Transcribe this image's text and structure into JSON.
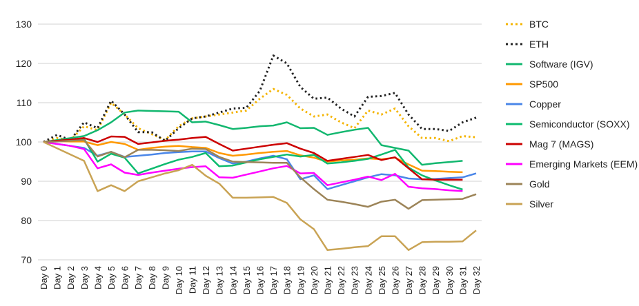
{
  "chart_data": {
    "type": "line",
    "title": "",
    "xlabel": "",
    "ylabel": "",
    "ylim": [
      70,
      130
    ],
    "yticks": [
      70,
      80,
      90,
      100,
      110,
      120,
      130
    ],
    "grid": true,
    "legend": "right",
    "categories": [
      "Day 0",
      "Day 1",
      "Day 2",
      "Day 3",
      "Day 4",
      "Day 5",
      "Day 6",
      "Day 7",
      "Day 8",
      "Day 9",
      "Day 10",
      "Day 11",
      "Day 12",
      "Day 13",
      "Day 14",
      "Day 15",
      "Day 16",
      "Day 17",
      "Day 18",
      "Day 19",
      "Day 20",
      "Day 21",
      "Day 22",
      "Day 23",
      "Day 24",
      "Day 25",
      "Day 26",
      "Day 27",
      "Day 28",
      "Day 29",
      "Day 30",
      "Day 31",
      "Day 32"
    ],
    "series": [
      {
        "name": "BTC",
        "color": "#f4b400",
        "dashed": true,
        "values": [
          100,
          101,
          100.5,
          104,
          103,
          110,
          107,
          103.5,
          102,
          100.5,
          104,
          106,
          106.5,
          107,
          107.5,
          108,
          111,
          113.5,
          112,
          108.5,
          106.5,
          107,
          105,
          103.5,
          108,
          107,
          108.5,
          104,
          101,
          101,
          100.2,
          101.5,
          101.2
        ]
      },
      {
        "name": "ETH",
        "color": "#222222",
        "dashed": true,
        "values": [
          100,
          101.8,
          100.5,
          105,
          103.5,
          110.5,
          107,
          102.5,
          102.5,
          100.3,
          103.5,
          106,
          106.5,
          107.5,
          108.5,
          108.7,
          113,
          122,
          120,
          114,
          111,
          111.3,
          108.5,
          106.5,
          111.5,
          111.7,
          112.5,
          107,
          103.3,
          103.3,
          102.8,
          105,
          106.2
        ]
      },
      {
        "name": "Software (IGV)",
        "color": "#12b76f",
        "dashed": false,
        "values": [
          100,
          100.5,
          101,
          101.5,
          103,
          105,
          107.5,
          108,
          107.9,
          107.8,
          107.7,
          105,
          105.2,
          104.3,
          103.3,
          103.6,
          104,
          104.2,
          105,
          103.5,
          103.6,
          101.8,
          102.5,
          103.1,
          103.6,
          99.2,
          98.5,
          97.8,
          94.2,
          94.6,
          94.9,
          95.2,
          null
        ]
      },
      {
        "name": "SP500",
        "color": "#ff9900",
        "dashed": false,
        "values": [
          100,
          100.2,
          100.1,
          100.1,
          99.2,
          100,
          99.5,
          98,
          98.5,
          98.8,
          99,
          98.7,
          98.5,
          97.2,
          96.5,
          96.8,
          97.2,
          97.5,
          97.7,
          96.6,
          96,
          95,
          95.3,
          95.5,
          95.8,
          95.6,
          96,
          94.3,
          92.7,
          92.6,
          92.4,
          92.3,
          null
        ]
      },
      {
        "name": "Copper",
        "color": "#4a86e8",
        "dashed": false,
        "values": [
          100,
          99.5,
          99,
          98.5,
          96.5,
          97.5,
          96.2,
          96.5,
          96.8,
          97.2,
          97.4,
          97.6,
          97.6,
          95.9,
          94.5,
          95,
          95.8,
          96.5,
          95.6,
          90.5,
          91.5,
          88,
          89,
          90,
          91,
          91.8,
          91.5,
          90.7,
          90.5,
          90.6,
          90.8,
          91,
          92
        ]
      },
      {
        "name": "Semiconductor (SOXX)",
        "color": "#0cbb6e",
        "dashed": false,
        "values": [
          100,
          100.2,
          100.5,
          100.8,
          95,
          97,
          96,
          92,
          93.2,
          94.4,
          95.5,
          96.2,
          97.2,
          93.8,
          94,
          94.8,
          95.6,
          96.2,
          96.8,
          96.3,
          96.7,
          94.5,
          94.8,
          95.2,
          95.7,
          96.8,
          98,
          93.5,
          91.5,
          90.2,
          89,
          87.9,
          null
        ]
      },
      {
        "name": "Mag 7 (MAGS)",
        "color": "#cc0000",
        "dashed": false,
        "values": [
          100,
          100.3,
          100.6,
          101,
          100,
          101.4,
          101.3,
          99.5,
          99.9,
          100.3,
          100.6,
          101,
          101.3,
          99.5,
          97.8,
          98.3,
          98.8,
          99.3,
          99.7,
          98.3,
          97.2,
          95.2,
          95.7,
          96.2,
          96.7,
          95.4,
          96.1,
          93.3,
          90.5,
          90.4,
          90.4,
          90.4,
          null
        ]
      },
      {
        "name": "Emerging Markets (EEM)",
        "color": "#ff00ff",
        "dashed": false,
        "values": [
          100,
          99.5,
          99,
          98.2,
          93.3,
          94.3,
          92.2,
          91.6,
          92.2,
          92.7,
          93.2,
          93.6,
          93.8,
          91,
          90.9,
          91.7,
          92.5,
          93.3,
          93.9,
          92,
          92.1,
          89,
          89.7,
          90.4,
          91.2,
          90.3,
          91.9,
          88.6,
          88.2,
          88,
          87.7,
          87.5,
          null
        ]
      },
      {
        "name": "Gold",
        "color": "#9c8458",
        "dashed": false,
        "values": [
          100,
          100.1,
          100.3,
          100.5,
          96.3,
          97.5,
          96.1,
          98,
          98,
          97.9,
          97.7,
          98.3,
          98.2,
          96.2,
          95,
          94.9,
          94.8,
          94.7,
          94.7,
          91,
          88,
          85.3,
          84.8,
          84.2,
          83.5,
          84.8,
          85.3,
          83,
          85.2,
          85.3,
          85.4,
          85.5,
          86.7
        ]
      },
      {
        "name": "Silver",
        "color": "#c9a354",
        "dashed": false,
        "values": [
          100,
          98.4,
          96.8,
          95.2,
          87.5,
          89,
          87.5,
          90,
          91,
          92,
          92.8,
          94.2,
          91.4,
          89.4,
          85.8,
          85.8,
          85.9,
          86,
          84.5,
          80.3,
          77.8,
          72.5,
          72.8,
          73.2,
          73.5,
          76,
          76,
          72.5,
          74.5,
          74.6,
          74.6,
          74.7,
          77.5
        ]
      }
    ]
  }
}
